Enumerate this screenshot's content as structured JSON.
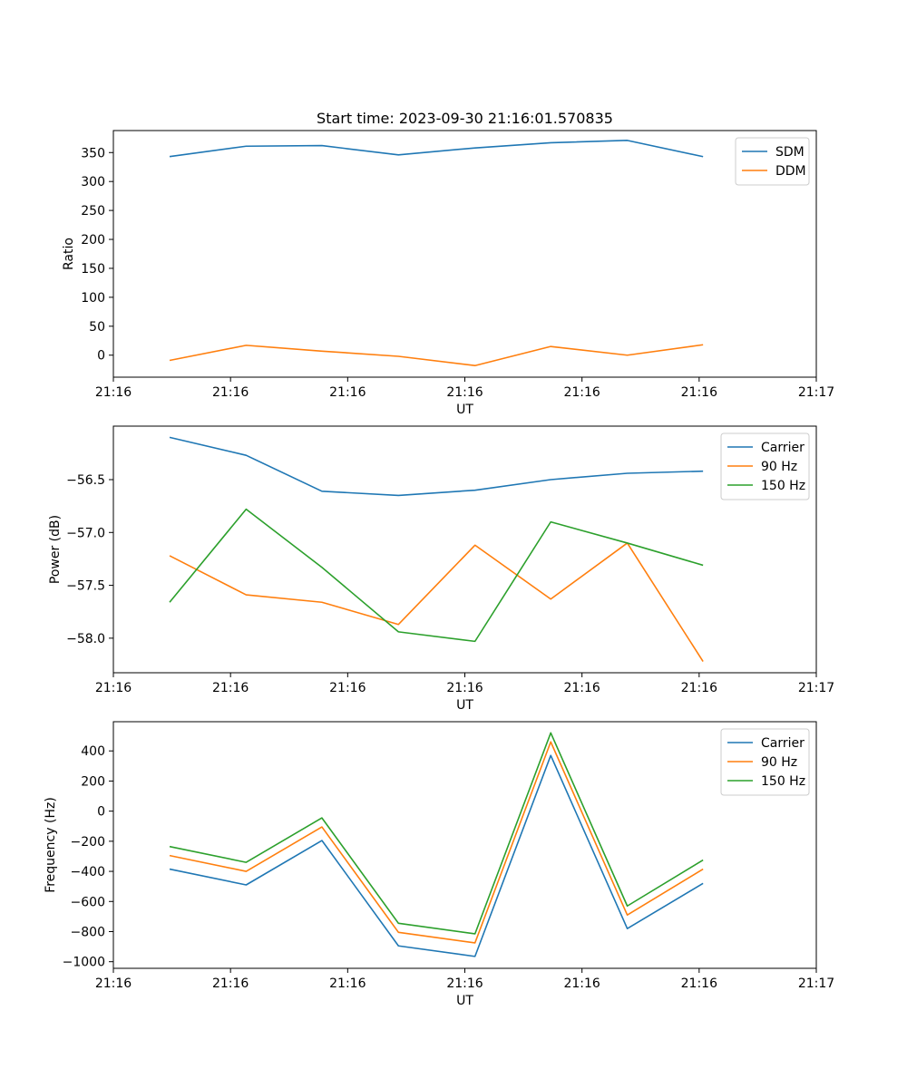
{
  "chart_data": [
    {
      "type": "line",
      "title": "Start time: 2023-09-30 21:16:01.570835",
      "xlabel": "UT",
      "ylabel": "Ratio",
      "legend_position": "top-right",
      "grid": false,
      "xlim": [
        0,
        9
      ],
      "ylim": [
        -38,
        388
      ],
      "x_ticks": [
        {
          "x": 0,
          "label": "21:16"
        },
        {
          "x": 1.5,
          "label": "21:16"
        },
        {
          "x": 3,
          "label": "21:16"
        },
        {
          "x": 4.5,
          "label": "21:16"
        },
        {
          "x": 6,
          "label": "21:16"
        },
        {
          "x": 7.5,
          "label": "21:16"
        },
        {
          "x": 9,
          "label": "21:17"
        }
      ],
      "y_ticks": [
        {
          "y": 0,
          "label": "0"
        },
        {
          "y": 50,
          "label": "50"
        },
        {
          "y": 100,
          "label": "100"
        },
        {
          "y": 150,
          "label": "150"
        },
        {
          "y": 200,
          "label": "200"
        },
        {
          "y": 250,
          "label": "250"
        },
        {
          "y": 300,
          "label": "300"
        },
        {
          "y": 350,
          "label": "350"
        }
      ],
      "x": [
        0.72,
        1.7,
        2.67,
        3.65,
        4.63,
        5.6,
        6.58,
        7.55
      ],
      "series": [
        {
          "name": "SDM",
          "color": "#1f77b4",
          "values": [
            343,
            361,
            362,
            346,
            358,
            367,
            371,
            343
          ]
        },
        {
          "name": "DDM",
          "color": "#ff7f0e",
          "values": [
            -9,
            17,
            7,
            -2,
            -18,
            15,
            0,
            18
          ]
        }
      ]
    },
    {
      "type": "line",
      "title": "",
      "xlabel": "UT",
      "ylabel": "Power (dB)",
      "legend_position": "top-right",
      "grid": false,
      "xlim": [
        0,
        9
      ],
      "ylim": [
        -58.327,
        -55.994
      ],
      "x_ticks": [
        {
          "x": 0,
          "label": "21:16"
        },
        {
          "x": 1.5,
          "label": "21:16"
        },
        {
          "x": 3,
          "label": "21:16"
        },
        {
          "x": 4.5,
          "label": "21:16"
        },
        {
          "x": 6,
          "label": "21:16"
        },
        {
          "x": 7.5,
          "label": "21:16"
        },
        {
          "x": 9,
          "label": "21:17"
        }
      ],
      "y_ticks": [
        {
          "y": -58.0,
          "label": "−58.0"
        },
        {
          "y": -57.5,
          "label": "−57.5"
        },
        {
          "y": -57.0,
          "label": "−57.0"
        },
        {
          "y": -56.5,
          "label": "−56.5"
        }
      ],
      "x": [
        0.72,
        1.7,
        2.67,
        3.65,
        4.63,
        5.6,
        6.58,
        7.55
      ],
      "series": [
        {
          "name": "Carrier",
          "color": "#1f77b4",
          "values": [
            -56.1,
            -56.27,
            -56.61,
            -56.65,
            -56.6,
            -56.5,
            -56.44,
            -56.42
          ]
        },
        {
          "name": "90 Hz",
          "color": "#ff7f0e",
          "values": [
            -57.22,
            -57.59,
            -57.66,
            -57.87,
            -57.12,
            -57.63,
            -57.1,
            -58.22
          ]
        },
        {
          "name": "150 Hz",
          "color": "#2ca02c",
          "values": [
            -57.66,
            -56.78,
            -57.33,
            -57.94,
            -58.03,
            -56.9,
            -57.1,
            -57.31
          ]
        }
      ]
    },
    {
      "type": "line",
      "title": "",
      "xlabel": "UT",
      "ylabel": "Frequency (Hz)",
      "legend_position": "top-right",
      "grid": false,
      "xlim": [
        0,
        9
      ],
      "ylim": [
        -1044,
        594
      ],
      "x_ticks": [
        {
          "x": 0,
          "label": "21:16"
        },
        {
          "x": 1.5,
          "label": "21:16"
        },
        {
          "x": 3,
          "label": "21:16"
        },
        {
          "x": 4.5,
          "label": "21:16"
        },
        {
          "x": 6,
          "label": "21:16"
        },
        {
          "x": 7.5,
          "label": "21:16"
        },
        {
          "x": 9,
          "label": "21:17"
        }
      ],
      "y_ticks": [
        {
          "y": -1000,
          "label": "−1000"
        },
        {
          "y": -800,
          "label": "−800"
        },
        {
          "y": -600,
          "label": "−600"
        },
        {
          "y": -400,
          "label": "−400"
        },
        {
          "y": -200,
          "label": "−200"
        },
        {
          "y": 0,
          "label": "0"
        },
        {
          "y": 200,
          "label": "200"
        },
        {
          "y": 400,
          "label": "400"
        }
      ],
      "x": [
        0.72,
        1.7,
        2.67,
        3.65,
        4.63,
        5.6,
        6.58,
        7.55
      ],
      "series": [
        {
          "name": "Carrier",
          "color": "#1f77b4",
          "values": [
            -385,
            -490,
            -195,
            -895,
            -965,
            370,
            -780,
            -480
          ]
        },
        {
          "name": "90 Hz",
          "color": "#ff7f0e",
          "values": [
            -295,
            -400,
            -105,
            -805,
            -875,
            460,
            -690,
            -385
          ]
        },
        {
          "name": "150 Hz",
          "color": "#2ca02c",
          "values": [
            -235,
            -340,
            -45,
            -745,
            -815,
            520,
            -630,
            -325
          ]
        }
      ]
    }
  ]
}
